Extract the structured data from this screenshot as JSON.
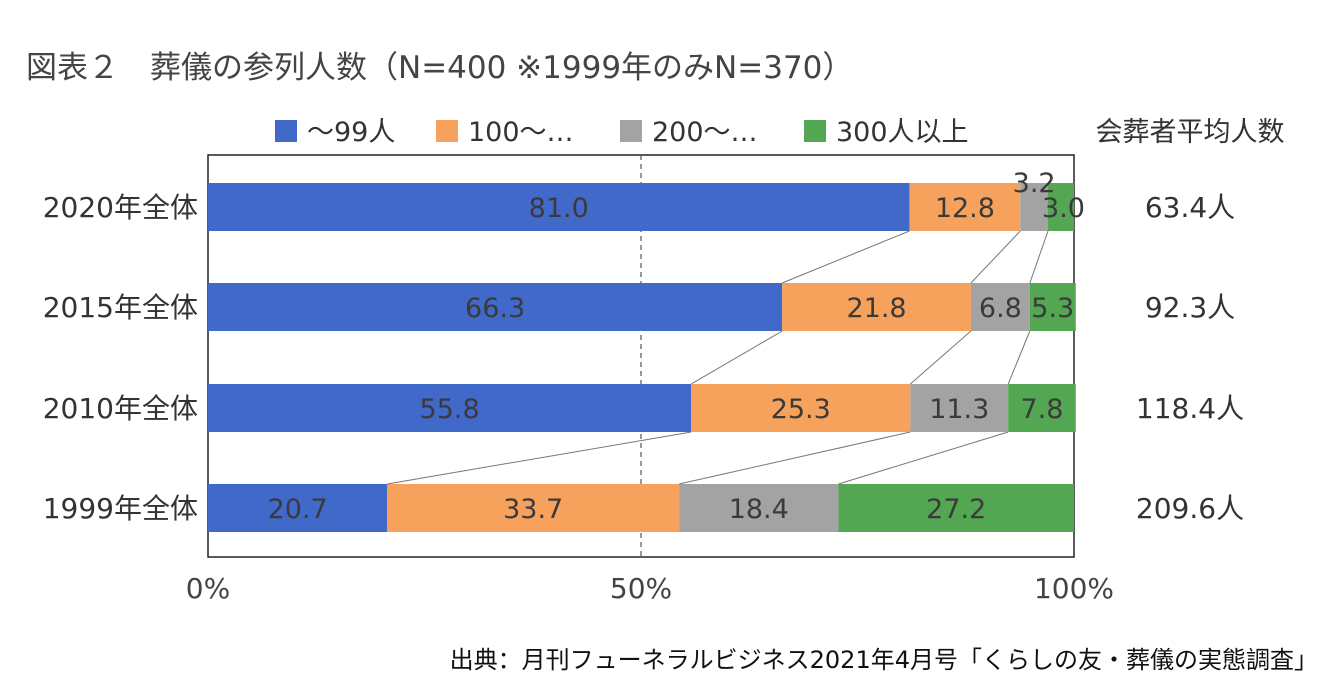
{
  "chart_data": {
    "type": "bar",
    "orientation": "horizontal",
    "stacked": true,
    "title": "図表２　葬儀の参列人数（N=400 ※1999年のみN=370）",
    "categories": [
      "2020年全体",
      "2015年全体",
      "2010年全体",
      "1999年全体"
    ],
    "series": [
      {
        "name": "～99人",
        "color": "#4169c9",
        "values": [
          81.0,
          66.3,
          55.8,
          20.7
        ],
        "labels": [
          "81.0",
          "66.3",
          "55.8",
          "20.7"
        ]
      },
      {
        "name": "100～…",
        "color": "#f6a25c",
        "values": [
          12.8,
          21.8,
          25.3,
          33.7
        ],
        "labels": [
          "12.8",
          "21.8",
          "25.3",
          "33.7"
        ]
      },
      {
        "name": "200～…",
        "color": "#a3a3a3",
        "values": [
          3.2,
          6.8,
          11.3,
          18.4
        ],
        "labels": [
          "3.2",
          "6.8",
          "11.3",
          "18.4"
        ]
      },
      {
        "name": "300人以上",
        "color": "#53a752",
        "values": [
          3.0,
          5.3,
          7.8,
          27.2
        ],
        "labels": [
          "3.0",
          "5.3",
          "7.8",
          "27.2"
        ]
      }
    ],
    "xlim": [
      0,
      100
    ],
    "xticks": [
      "0%",
      "50%",
      "100%"
    ],
    "reference_line": 50,
    "average_header": "会葬者平均人数",
    "averages": [
      "63.4人",
      "92.3人",
      "118.4人",
      "209.6人"
    ]
  },
  "source": "出典：月刊フューネラルビジネス2021年4月号「くらしの友・葬儀の実態調査」"
}
